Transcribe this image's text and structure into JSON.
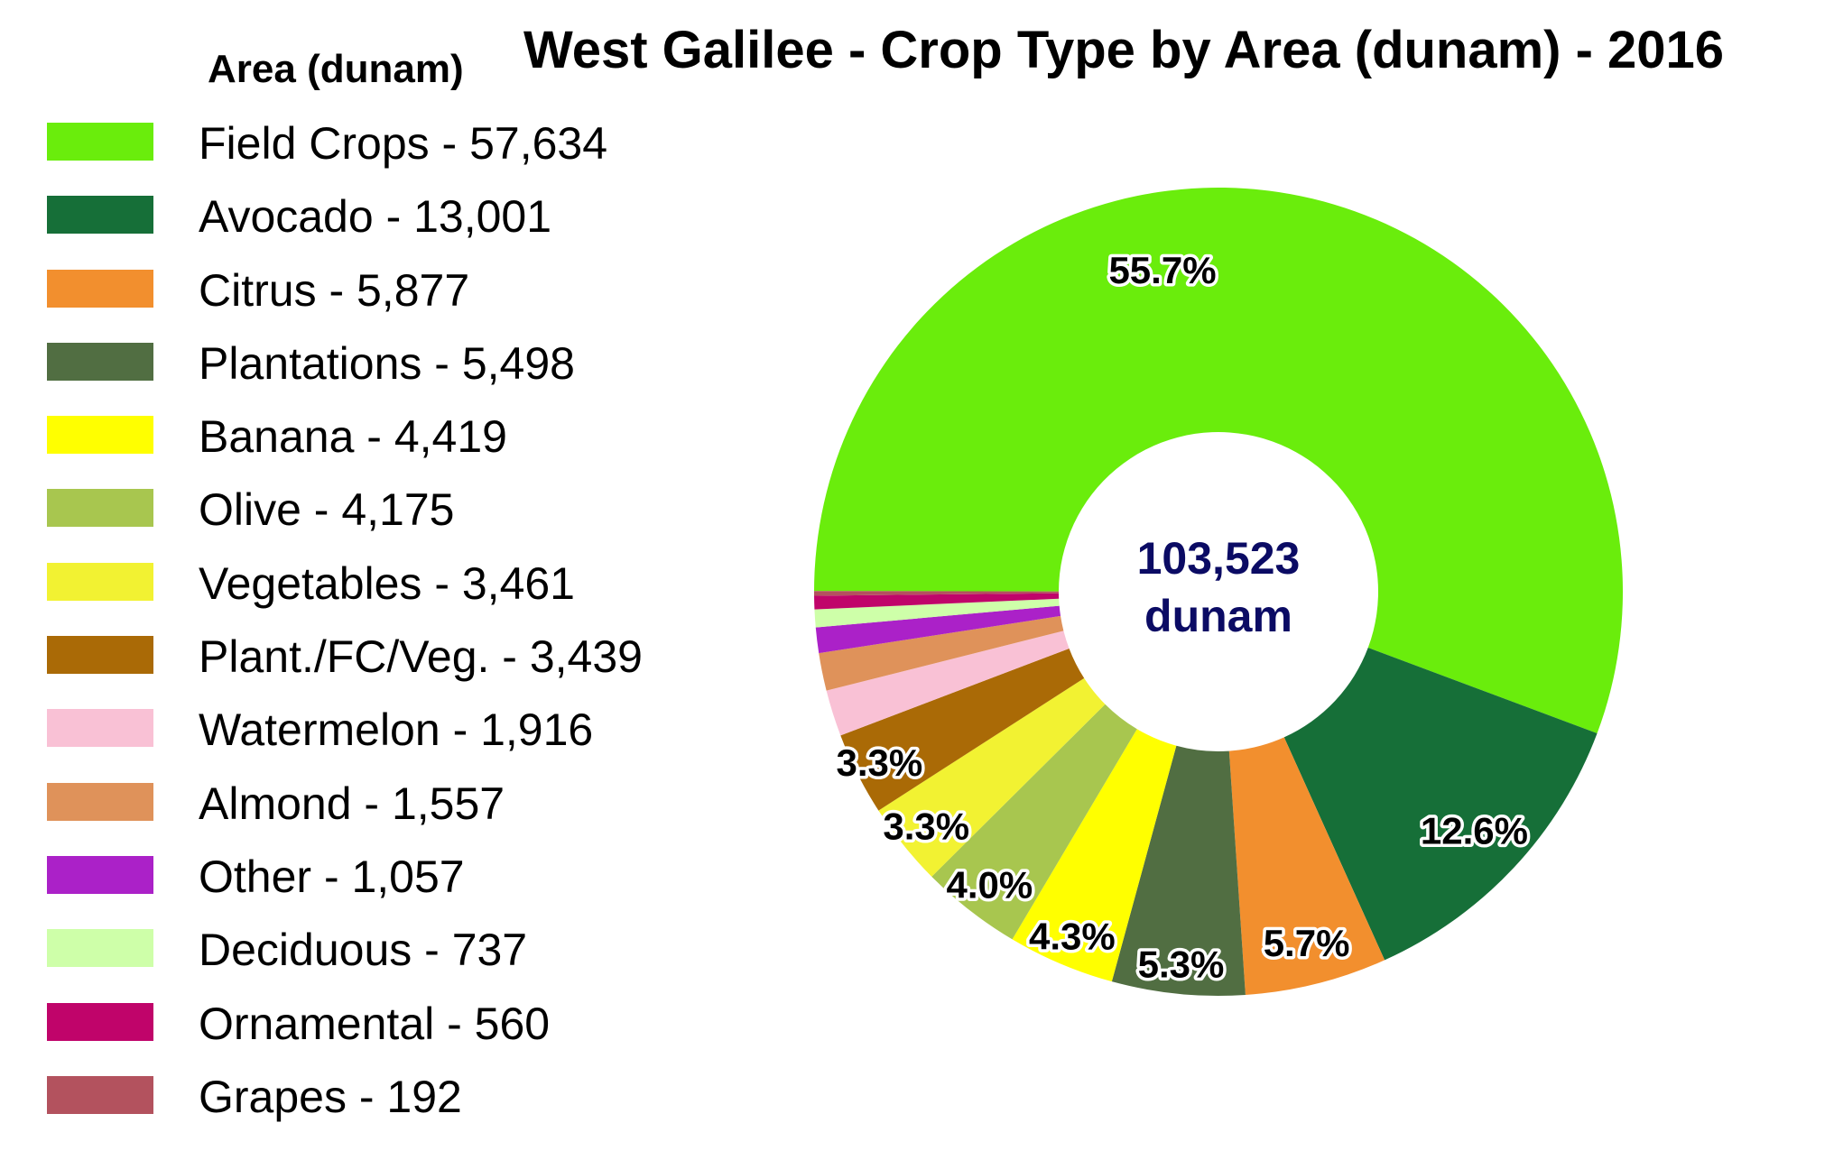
{
  "chart_data": {
    "type": "pie",
    "variant": "donut",
    "title": "West Galilee - Crop Type by Area (dunam) - 2016",
    "legend_title": "Area (dunam)",
    "legend_position": "left",
    "center_label": {
      "value": "103,523",
      "unit": "dunam"
    },
    "slices": [
      {
        "name": "Field Crops",
        "value": 57634,
        "legend": "Field Crops - 57,634",
        "color": "#6aed0c",
        "pct_label": "55.7%"
      },
      {
        "name": "Avocado",
        "value": 13001,
        "legend": "Avocado - 13,001",
        "color": "#166f38",
        "pct_label": "12.6%"
      },
      {
        "name": "Citrus",
        "value": 5877,
        "legend": "Citrus - 5,877",
        "color": "#f28f2e",
        "pct_label": "5.7%"
      },
      {
        "name": "Plantations",
        "value": 5498,
        "legend": "Plantations - 5,498",
        "color": "#516e42",
        "pct_label": "5.3%"
      },
      {
        "name": "Banana",
        "value": 4419,
        "legend": "Banana - 4,419",
        "color": "#ffff00",
        "pct_label": "4.3%"
      },
      {
        "name": "Olive",
        "value": 4175,
        "legend": "Olive - 4,175",
        "color": "#a8c64f",
        "pct_label": "4.0%"
      },
      {
        "name": "Vegetables",
        "value": 3461,
        "legend": "Vegetables - 3,461",
        "color": "#f2f232",
        "pct_label": "3.3%"
      },
      {
        "name": "Plant./FC/Veg.",
        "value": 3439,
        "legend": "Plant./FC/Veg. - 3,439",
        "color": "#aa6a06",
        "pct_label": "3.3%"
      },
      {
        "name": "Watermelon",
        "value": 1916,
        "legend": "Watermelon - 1,916",
        "color": "#f9c1d5",
        "pct_label": ""
      },
      {
        "name": "Almond",
        "value": 1557,
        "legend": "Almond - 1,557",
        "color": "#df925a",
        "pct_label": ""
      },
      {
        "name": "Other",
        "value": 1057,
        "legend": "Other - 1,057",
        "color": "#ab21c8",
        "pct_label": ""
      },
      {
        "name": "Deciduous",
        "value": 737,
        "legend": "Deciduous - 737",
        "color": "#ceffa9",
        "pct_label": ""
      },
      {
        "name": "Ornamental",
        "value": 560,
        "legend": "Ornamental - 560",
        "color": "#c0046a",
        "pct_label": ""
      },
      {
        "name": "Grapes",
        "value": 192,
        "legend": "Grapes - 192",
        "color": "#b3525e",
        "pct_label": ""
      }
    ]
  }
}
